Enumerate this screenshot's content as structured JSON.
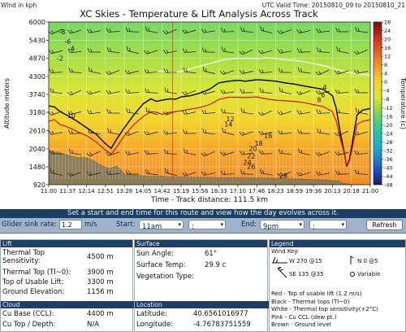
{
  "top": {
    "wind_units": "Wind in kph",
    "valid_time": "UTC Valid Time: 20150810_09 to 20150810_21"
  },
  "chart_data": {
    "type": "line",
    "title": "XC Skies - Temperature & Lift Analysis Across Track",
    "xlabel": "Time - Track distance: 111.5 km",
    "ylabel": "Altitude meters",
    "colorbar_label": "Temperature (c)",
    "x_ticks": [
      "11:00",
      "11:37",
      "12:14",
      "12:51",
      "13:28",
      "14:05",
      "14:42",
      "15:19",
      "15:56",
      "16:33",
      "17:10",
      "17:46",
      "18:23",
      "18:59",
      "19:36",
      "20:13",
      "20:18",
      "21:00"
    ],
    "y_ticks": [
      920,
      1480,
      2040,
      2610,
      3180,
      3740,
      4300,
      4870,
      5430,
      6000
    ],
    "ylim": [
      920,
      6000
    ],
    "colorbar_ticks": [
      28,
      24,
      20,
      16,
      12,
      8,
      4,
      0,
      -4,
      -8,
      -12,
      -16,
      -20,
      -24,
      -28,
      -32,
      -36,
      -40,
      -44,
      -48
    ],
    "colorbar_range": [
      -48,
      28
    ],
    "grid": true,
    "series": [
      {
        "color": "#000000",
        "values": [
          [
            0,
            3380
          ],
          [
            0.3,
            3350
          ],
          [
            0.6,
            3200
          ],
          [
            1.0,
            3080
          ],
          [
            1.5,
            2900
          ],
          [
            2.0,
            2700
          ],
          [
            2.5,
            2500
          ],
          [
            3.0,
            2200
          ],
          [
            3.3,
            2050
          ],
          [
            3.6,
            2350
          ],
          [
            4.0,
            2700
          ],
          [
            4.5,
            3100
          ],
          [
            5.0,
            3450
          ],
          [
            5.4,
            3600
          ],
          [
            5.7,
            3520
          ],
          [
            6.0,
            3560
          ],
          [
            6.4,
            3600
          ],
          [
            6.7,
            3590
          ],
          [
            7.0,
            3660
          ],
          [
            7.5,
            3700
          ],
          [
            8.0,
            3780
          ],
          [
            8.5,
            3900
          ],
          [
            9.0,
            4100
          ],
          [
            9.5,
            4150
          ],
          [
            10.0,
            4180
          ],
          [
            10.4,
            4150
          ],
          [
            11.0,
            4200
          ],
          [
            11.5,
            4180
          ],
          [
            12.0,
            4150
          ],
          [
            12.5,
            4100
          ],
          [
            13.0,
            4060
          ],
          [
            13.5,
            4000
          ],
          [
            14.0,
            3950
          ],
          [
            14.5,
            3900
          ],
          [
            15.0,
            3700
          ],
          [
            15.2,
            3300
          ],
          [
            15.4,
            2600
          ],
          [
            15.6,
            2000
          ],
          [
            15.75,
            1500
          ],
          [
            15.9,
            1700
          ],
          [
            16.1,
            2400
          ],
          [
            16.3,
            3100
          ],
          [
            16.6,
            3250
          ],
          [
            17,
            3300
          ]
        ]
      },
      {
        "color": "#cc1a1a",
        "values": [
          [
            0,
            2900
          ],
          [
            0.3,
            2950
          ],
          [
            0.6,
            2800
          ],
          [
            1.0,
            2720
          ],
          [
            1.5,
            2580
          ],
          [
            2.0,
            2450
          ],
          [
            2.5,
            2260
          ],
          [
            3.0,
            2000
          ],
          [
            3.3,
            1870
          ],
          [
            3.6,
            2100
          ],
          [
            4.0,
            2450
          ],
          [
            4.5,
            2800
          ],
          [
            5.0,
            3050
          ],
          [
            5.4,
            3200
          ],
          [
            5.7,
            3180
          ],
          [
            6.0,
            3120
          ],
          [
            6.4,
            3180
          ],
          [
            6.7,
            3200
          ],
          [
            7.0,
            3230
          ],
          [
            7.5,
            3280
          ],
          [
            8.0,
            3330
          ],
          [
            8.5,
            3420
          ],
          [
            9.0,
            3580
          ],
          [
            9.5,
            3650
          ],
          [
            10.0,
            3650
          ],
          [
            10.4,
            3640
          ],
          [
            11.0,
            3660
          ],
          [
            11.5,
            3600
          ],
          [
            12.0,
            3560
          ],
          [
            12.5,
            3540
          ],
          [
            13.0,
            3520
          ],
          [
            13.5,
            3480
          ],
          [
            14.0,
            3420
          ],
          [
            14.5,
            3360
          ],
          [
            15.0,
            3200
          ],
          [
            15.2,
            2900
          ],
          [
            15.4,
            2400
          ],
          [
            15.6,
            1950
          ],
          [
            15.75,
            1550
          ],
          [
            15.9,
            1650
          ],
          [
            16.1,
            2200
          ],
          [
            16.3,
            2800
          ],
          [
            16.6,
            2900
          ],
          [
            17,
            2950
          ]
        ]
      },
      {
        "color": "#ffffff",
        "values": [
          [
            5.5,
            4430
          ],
          [
            6.0,
            4470
          ],
          [
            6.5,
            4420
          ],
          [
            7.0,
            4460
          ],
          [
            7.5,
            4540
          ],
          [
            8.0,
            4620
          ],
          [
            8.5,
            4700
          ],
          [
            9.0,
            4780
          ],
          [
            9.5,
            4840
          ],
          [
            10.0,
            4860
          ],
          [
            10.5,
            4870
          ],
          [
            11.0,
            4860
          ],
          [
            11.5,
            4880
          ],
          [
            12.0,
            4860
          ],
          [
            12.5,
            4820
          ],
          [
            13.0,
            4800
          ],
          [
            13.5,
            4760
          ],
          [
            14.0,
            4700
          ],
          [
            14.5,
            4640
          ],
          [
            15.0,
            4560
          ],
          [
            15.5,
            4480
          ],
          [
            16.0,
            4400
          ],
          [
            16.5,
            4380
          ],
          [
            17,
            4350
          ]
        ]
      }
    ],
    "ground": [
      [
        0,
        1960
      ],
      [
        0.5,
        1930
      ],
      [
        1,
        1850
      ],
      [
        1.5,
        1770
      ],
      [
        2,
        1760
      ],
      [
        2.4,
        1660
      ],
      [
        2.8,
        1520
      ],
      [
        3.2,
        1430
      ],
      [
        3.6,
        1500
      ],
      [
        4,
        1260
      ],
      [
        4.5,
        1220
      ],
      [
        5,
        1200
      ],
      [
        5.5,
        1180
      ],
      [
        6,
        1190
      ],
      [
        6.5,
        1160
      ],
      [
        7,
        1170
      ],
      [
        7.5,
        1150
      ],
      [
        8,
        1150
      ],
      [
        9,
        1140
      ],
      [
        10,
        1140
      ],
      [
        11,
        1130
      ],
      [
        12,
        1120
      ],
      [
        13,
        1100
      ],
      [
        14,
        1080
      ],
      [
        14.5,
        1070
      ],
      [
        15,
        1050
      ],
      [
        15.3,
        1040
      ],
      [
        15.6,
        960
      ],
      [
        16,
        930
      ],
      [
        17,
        920
      ]
    ],
    "isotherm_labels": [
      {
        "x": 1.2,
        "y": 3000,
        "t": "10"
      },
      {
        "x": 9.6,
        "y": 2900,
        "t": "12"
      },
      {
        "x": 9.5,
        "y": 2730,
        "t": "14"
      },
      {
        "x": 11.6,
        "y": 2380,
        "t": "16"
      },
      {
        "x": 11.1,
        "y": 2140,
        "t": "18"
      },
      {
        "x": 10.8,
        "y": 1980,
        "t": "20"
      },
      {
        "x": 10.7,
        "y": 1740,
        "t": "22"
      },
      {
        "x": 10.5,
        "y": 1540,
        "t": "24"
      },
      {
        "x": 10.7,
        "y": 1420,
        "t": "26"
      },
      {
        "x": 12.4,
        "y": 1120,
        "t": "28"
      },
      {
        "x": 0.7,
        "y": 5620,
        "t": "-8"
      },
      {
        "x": 1.0,
        "y": 5320,
        "t": "-6"
      },
      {
        "x": 1.2,
        "y": 5100,
        "t": "-4"
      },
      {
        "x": 0.6,
        "y": 4790,
        "t": "-2"
      },
      {
        "x": 14.6,
        "y": 3890,
        "t": "4"
      },
      {
        "x": 14.5,
        "y": 3650,
        "t": "6"
      },
      {
        "x": 14.3,
        "y": 3500,
        "t": "8"
      }
    ]
  },
  "banner": "Set a start and end time for this route and view how the day evolves across it.",
  "controls": {
    "sink_label": "Glider sink rate:",
    "sink_value": "1.2",
    "sink_unit": "m/s",
    "start_label": "Start:",
    "start_value": "11am",
    "start_sub": ":",
    "end_label": "End:",
    "end_value": "9pm",
    "end_sub": ":",
    "refresh": "Refresh"
  },
  "lift": {
    "title": "Lift",
    "tts_label": "Thermal Top Sensitivity:",
    "tts_value": "4500 m",
    "tt_label": "Thermal Top (Tl~0):",
    "tt_value": "3900 m",
    "tul_label": "Top of Usable Lift:",
    "tul_value": "3300 m",
    "ge_label": "Ground Elevation:",
    "ge_value": "1156 m"
  },
  "cloud": {
    "title": "Cloud",
    "cb_label": "Cu Base (CCL):",
    "cb_value": "4400 m",
    "ct_label": "Cu Top / Depth:",
    "ct_value": "N/A"
  },
  "surface": {
    "title": "Surface",
    "sun_label": "Sun Angle:",
    "sun_value": "61°",
    "temp_label": "Surface Temp:",
    "temp_value": "29.9 c",
    "veg_label": "Vegetation Type:",
    "veg_value": ""
  },
  "location": {
    "title": "Location",
    "lat_label": "Latitude:",
    "lat_value": "40.6561016977",
    "lon_label": "Longitude:",
    "lon_value": "-4.76783751559"
  },
  "legend": {
    "title": "Legend",
    "wind_key": "Wind Key:",
    "w1": "W 270 @15",
    "w2": "N 0 @5",
    "w3": "SE 135 @35",
    "w4": "Variable",
    "l1": "Red - Top of usable lift (1.2 m/s)",
    "l2": "Black - Thermal tops (Tl~0)",
    "l3": "White - Thermal top sensitivity(+2°C)",
    "l4": "Pink - Cu CCL (dew pt.)",
    "l5": "Brown - Ground level"
  }
}
